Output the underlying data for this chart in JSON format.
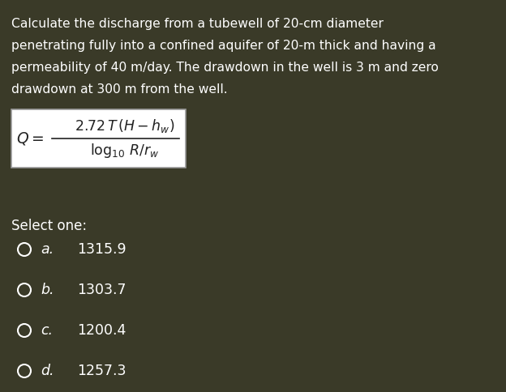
{
  "background_color": "#3a3a28",
  "text_color": "#ffffff",
  "formula_box_bg": "#ffffff",
  "formula_box_edge": "#999999",
  "select_one": "Select one:",
  "options": [
    {
      "label": "a.",
      "value": "1315.9"
    },
    {
      "label": "b.",
      "value": "1303.7"
    },
    {
      "label": "c.",
      "value": "1200.4"
    },
    {
      "label": "d.",
      "value": "1257.3"
    }
  ],
  "question_fontsize": 11.2,
  "option_fontsize": 12.5,
  "select_fontsize": 12.0,
  "formula_fontsize": 12.5,
  "q_label_fontsize": 13.5
}
